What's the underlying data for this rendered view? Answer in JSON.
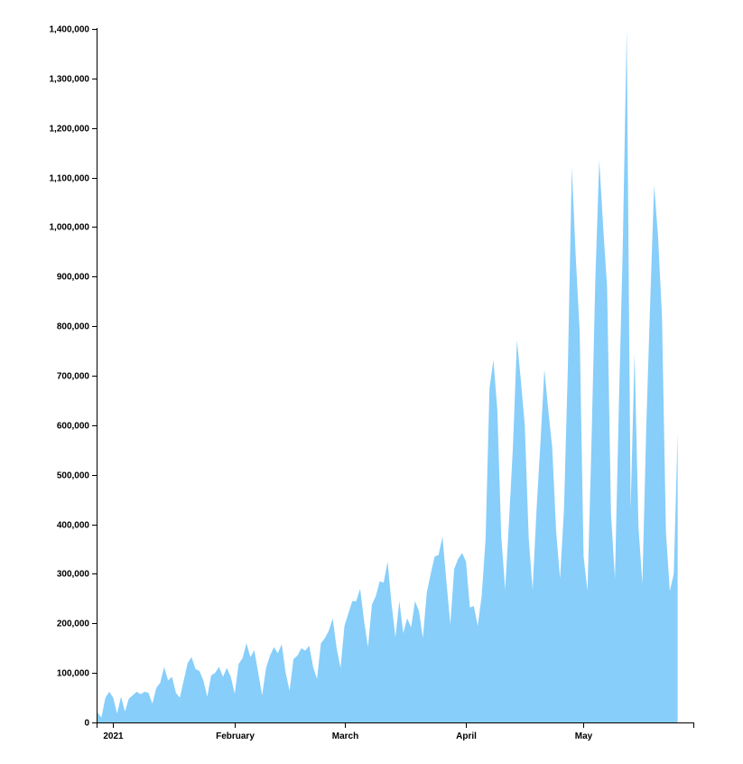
{
  "chart_data": {
    "type": "area",
    "title": "",
    "xlabel": "",
    "ylabel": "",
    "color": "#87cefa",
    "x_start": "2020-12-28",
    "x_end": "2021-05-29",
    "ylim": [
      0,
      1400000
    ],
    "y_ticks": [
      0,
      100000,
      200000,
      300000,
      400000,
      500000,
      600000,
      700000,
      800000,
      900000,
      1000000,
      1100000,
      1200000,
      1300000,
      1400000
    ],
    "y_tick_labels": [
      "0",
      "100,000",
      "200,000",
      "300,000",
      "400,000",
      "500,000",
      "600,000",
      "700,000",
      "800,000",
      "900,000",
      "1,000,000",
      "1,100,000",
      "1,200,000",
      "1,300,000",
      "1,400,000"
    ],
    "x_ticks": [
      {
        "date": "2021-01-01",
        "label": "2021"
      },
      {
        "date": "2021-02-01",
        "label": "February"
      },
      {
        "date": "2021-03-01",
        "label": "March"
      },
      {
        "date": "2021-04-01",
        "label": "April"
      },
      {
        "date": "2021-05-01",
        "label": "May"
      }
    ],
    "series": [
      {
        "values": [
          [
            "2020-12-28",
            20000
          ],
          [
            "2020-12-29",
            10000
          ],
          [
            "2020-12-30",
            50000
          ],
          [
            "2020-12-31",
            62000
          ],
          [
            "2021-01-01",
            50000
          ],
          [
            "2021-01-02",
            18000
          ],
          [
            "2021-01-03",
            52000
          ],
          [
            "2021-01-04",
            22000
          ],
          [
            "2021-01-05",
            48000
          ],
          [
            "2021-01-06",
            55000
          ],
          [
            "2021-01-07",
            62000
          ],
          [
            "2021-01-08",
            57000
          ],
          [
            "2021-01-09",
            62000
          ],
          [
            "2021-01-10",
            60000
          ],
          [
            "2021-01-11",
            38000
          ],
          [
            "2021-01-12",
            70000
          ],
          [
            "2021-01-13",
            80000
          ],
          [
            "2021-01-14",
            112000
          ],
          [
            "2021-01-15",
            85000
          ],
          [
            "2021-01-16",
            92000
          ],
          [
            "2021-01-17",
            60000
          ],
          [
            "2021-01-18",
            50000
          ],
          [
            "2021-01-19",
            85000
          ],
          [
            "2021-01-20",
            120000
          ],
          [
            "2021-01-21",
            132000
          ],
          [
            "2021-01-22",
            108000
          ],
          [
            "2021-01-23",
            104000
          ],
          [
            "2021-01-24",
            85000
          ],
          [
            "2021-01-25",
            52000
          ],
          [
            "2021-01-26",
            95000
          ],
          [
            "2021-01-27",
            100000
          ],
          [
            "2021-01-28",
            112000
          ],
          [
            "2021-01-29",
            92000
          ],
          [
            "2021-01-30",
            110000
          ],
          [
            "2021-01-31",
            92000
          ],
          [
            "2021-02-01",
            58000
          ],
          [
            "2021-02-02",
            118000
          ],
          [
            "2021-02-03",
            130000
          ],
          [
            "2021-02-04",
            160000
          ],
          [
            "2021-02-05",
            132000
          ],
          [
            "2021-02-06",
            146000
          ],
          [
            "2021-02-07",
            100000
          ],
          [
            "2021-02-08",
            55000
          ],
          [
            "2021-02-09",
            110000
          ],
          [
            "2021-02-10",
            135000
          ],
          [
            "2021-02-11",
            152000
          ],
          [
            "2021-02-12",
            140000
          ],
          [
            "2021-02-13",
            158000
          ],
          [
            "2021-02-14",
            100000
          ],
          [
            "2021-02-15",
            64000
          ],
          [
            "2021-02-16",
            128000
          ],
          [
            "2021-02-17",
            135000
          ],
          [
            "2021-02-18",
            150000
          ],
          [
            "2021-02-19",
            145000
          ],
          [
            "2021-02-20",
            155000
          ],
          [
            "2021-02-21",
            112000
          ],
          [
            "2021-02-22",
            88000
          ],
          [
            "2021-02-23",
            160000
          ],
          [
            "2021-02-24",
            170000
          ],
          [
            "2021-02-25",
            185000
          ],
          [
            "2021-02-26",
            210000
          ],
          [
            "2021-02-27",
            150000
          ],
          [
            "2021-02-28",
            110000
          ],
          [
            "2021-03-01",
            195000
          ],
          [
            "2021-03-02",
            220000
          ],
          [
            "2021-03-03",
            245000
          ],
          [
            "2021-03-04",
            245000
          ],
          [
            "2021-03-05",
            270000
          ],
          [
            "2021-03-06",
            205000
          ],
          [
            "2021-03-07",
            152000
          ],
          [
            "2021-03-08",
            238000
          ],
          [
            "2021-03-09",
            255000
          ],
          [
            "2021-03-10",
            285000
          ],
          [
            "2021-03-11",
            282000
          ],
          [
            "2021-03-12",
            325000
          ],
          [
            "2021-03-13",
            240000
          ],
          [
            "2021-03-14",
            172000
          ],
          [
            "2021-03-15",
            245000
          ],
          [
            "2021-03-16",
            180000
          ],
          [
            "2021-03-17",
            210000
          ],
          [
            "2021-03-18",
            192000
          ],
          [
            "2021-03-19",
            245000
          ],
          [
            "2021-03-20",
            225000
          ],
          [
            "2021-03-21",
            170000
          ],
          [
            "2021-03-22",
            262000
          ],
          [
            "2021-03-23",
            300000
          ],
          [
            "2021-03-24",
            335000
          ],
          [
            "2021-03-25",
            338000
          ],
          [
            "2021-03-26",
            375000
          ],
          [
            "2021-03-27",
            285000
          ],
          [
            "2021-03-28",
            198000
          ],
          [
            "2021-03-29",
            310000
          ],
          [
            "2021-03-30",
            330000
          ],
          [
            "2021-03-31",
            342000
          ],
          [
            "2021-04-01",
            325000
          ],
          [
            "2021-04-02",
            232000
          ],
          [
            "2021-04-03",
            235000
          ],
          [
            "2021-04-04",
            195000
          ],
          [
            "2021-04-05",
            255000
          ],
          [
            "2021-04-06",
            370000
          ],
          [
            "2021-04-07",
            675000
          ],
          [
            "2021-04-08",
            732000
          ],
          [
            "2021-04-09",
            630000
          ],
          [
            "2021-04-10",
            375000
          ],
          [
            "2021-04-11",
            268000
          ],
          [
            "2021-04-12",
            410000
          ],
          [
            "2021-04-13",
            560000
          ],
          [
            "2021-04-14",
            772000
          ],
          [
            "2021-04-15",
            690000
          ],
          [
            "2021-04-16",
            600000
          ],
          [
            "2021-04-17",
            372000
          ],
          [
            "2021-04-18",
            268000
          ],
          [
            "2021-04-19",
            430000
          ],
          [
            "2021-04-20",
            565000
          ],
          [
            "2021-04-21",
            712000
          ],
          [
            "2021-04-22",
            630000
          ],
          [
            "2021-04-23",
            555000
          ],
          [
            "2021-04-24",
            385000
          ],
          [
            "2021-04-25",
            290000
          ],
          [
            "2021-04-26",
            430000
          ],
          [
            "2021-04-27",
            720000
          ],
          [
            "2021-04-28",
            1120000
          ],
          [
            "2021-04-29",
            940000
          ],
          [
            "2021-04-30",
            790000
          ],
          [
            "2021-05-01",
            335000
          ],
          [
            "2021-05-02",
            265000
          ],
          [
            "2021-05-03",
            560000
          ],
          [
            "2021-05-04",
            895000
          ],
          [
            "2021-05-05",
            1135000
          ],
          [
            "2021-05-06",
            1000000
          ],
          [
            "2021-05-07",
            878000
          ],
          [
            "2021-05-08",
            420000
          ],
          [
            "2021-05-09",
            290000
          ],
          [
            "2021-05-10",
            640000
          ],
          [
            "2021-05-11",
            960000
          ],
          [
            "2021-05-12",
            1400000
          ],
          [
            "2021-05-13",
            430000
          ],
          [
            "2021-05-14",
            745000
          ],
          [
            "2021-05-15",
            395000
          ],
          [
            "2021-05-16",
            280000
          ],
          [
            "2021-05-17",
            600000
          ],
          [
            "2021-05-18",
            850000
          ],
          [
            "2021-05-19",
            1085000
          ],
          [
            "2021-05-20",
            980000
          ],
          [
            "2021-05-21",
            820000
          ],
          [
            "2021-05-22",
            385000
          ],
          [
            "2021-05-23",
            265000
          ],
          [
            "2021-05-24",
            300000
          ],
          [
            "2021-05-25",
            585000
          ]
        ]
      }
    ]
  }
}
